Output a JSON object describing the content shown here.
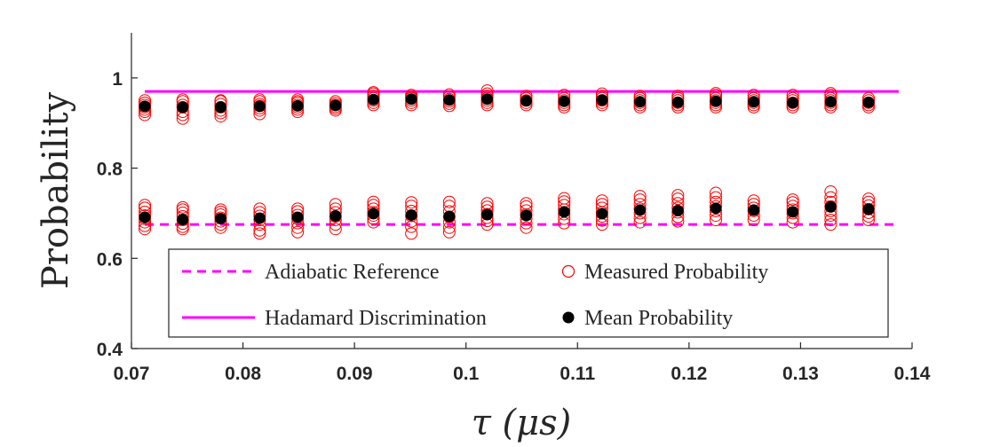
{
  "chart_data": {
    "type": "scatter",
    "xlabel": "τ (μs)",
    "ylabel": "Probability",
    "xlim": [
      0.07,
      0.14
    ],
    "ylim": [
      0.4,
      1.1
    ],
    "xticks": [
      0.07,
      0.08,
      0.09,
      0.1,
      0.11,
      0.12,
      0.13,
      0.14
    ],
    "xtick_labels": [
      "0.07",
      "0.08",
      "0.09",
      "0.1",
      "0.11",
      "0.12",
      "0.13",
      "0.14"
    ],
    "yticks": [
      0.4,
      0.6,
      0.8,
      1.0
    ],
    "ytick_labels": [
      "0.4",
      "0.6",
      "0.8",
      "1"
    ],
    "grid": false,
    "legend_position": "lower-center",
    "colors": {
      "adiabatic": "#ff00ff",
      "hadamard": "#ff00ff",
      "measured": "#ff0000",
      "mean": "#000000",
      "axis": "#262626"
    },
    "legend": [
      {
        "label": "Adiabatic Reference",
        "series": "adiabatic"
      },
      {
        "label": "Measured Probability",
        "series": "measured"
      },
      {
        "label": "Hadamard Discrimination",
        "series": "hadamard"
      },
      {
        "label": "Mean Probability",
        "series": "mean"
      }
    ],
    "reference_lines": {
      "adiabatic": {
        "y": 0.675,
        "x_range": [
          0.0712,
          0.1388
        ],
        "style": "dashed"
      },
      "hadamard": {
        "y": 0.97,
        "x_range": [
          0.0712,
          0.1388
        ],
        "style": "solid"
      }
    },
    "x": [
      0.0712,
      0.0746,
      0.078,
      0.0815,
      0.0849,
      0.0883,
      0.0917,
      0.0951,
      0.0985,
      0.1019,
      0.1054,
      0.1088,
      0.1122,
      0.1156,
      0.119,
      0.1224,
      0.1258,
      0.1293,
      0.1327,
      0.1361
    ],
    "mean_high": [
      0.937,
      0.935,
      0.935,
      0.937,
      0.938,
      0.939,
      0.952,
      0.953,
      0.951,
      0.953,
      0.949,
      0.948,
      0.951,
      0.947,
      0.946,
      0.948,
      0.947,
      0.945,
      0.947,
      0.946
    ],
    "mean_low": [
      0.691,
      0.686,
      0.688,
      0.689,
      0.691,
      0.694,
      0.699,
      0.696,
      0.693,
      0.697,
      0.695,
      0.703,
      0.699,
      0.707,
      0.706,
      0.711,
      0.707,
      0.703,
      0.714,
      0.709
    ],
    "measured_high": [
      [
        0.918,
        0.925,
        0.93,
        0.935,
        0.94,
        0.945,
        0.95
      ],
      [
        0.91,
        0.918,
        0.925,
        0.935,
        0.94,
        0.948,
        0.952
      ],
      [
        0.915,
        0.922,
        0.928,
        0.935,
        0.942,
        0.948,
        0.95
      ],
      [
        0.92,
        0.928,
        0.933,
        0.938,
        0.942,
        0.948,
        0.952
      ],
      [
        0.925,
        0.93,
        0.935,
        0.94,
        0.945,
        0.948,
        0.952
      ],
      [
        0.928,
        0.932,
        0.936,
        0.94,
        0.944,
        0.948
      ],
      [
        0.94,
        0.945,
        0.95,
        0.955,
        0.96,
        0.965,
        0.968
      ],
      [
        0.94,
        0.945,
        0.95,
        0.955,
        0.958,
        0.962
      ],
      [
        0.938,
        0.943,
        0.948,
        0.953,
        0.958,
        0.963
      ],
      [
        0.94,
        0.945,
        0.95,
        0.955,
        0.96,
        0.965,
        0.972
      ],
      [
        0.94,
        0.945,
        0.95,
        0.955,
        0.96
      ],
      [
        0.935,
        0.94,
        0.945,
        0.95,
        0.955,
        0.962
      ],
      [
        0.94,
        0.945,
        0.95,
        0.955,
        0.96,
        0.965
      ],
      [
        0.935,
        0.94,
        0.945,
        0.95,
        0.955,
        0.96
      ],
      [
        0.935,
        0.94,
        0.945,
        0.95,
        0.955,
        0.96
      ],
      [
        0.935,
        0.94,
        0.945,
        0.95,
        0.955,
        0.962,
        0.966
      ],
      [
        0.935,
        0.94,
        0.945,
        0.95,
        0.955,
        0.962
      ],
      [
        0.935,
        0.94,
        0.945,
        0.95,
        0.955,
        0.962
      ],
      [
        0.935,
        0.94,
        0.945,
        0.95,
        0.955,
        0.962,
        0.966
      ],
      [
        0.935,
        0.94,
        0.945,
        0.95,
        0.955
      ]
    ],
    "measured_low": [
      [
        0.665,
        0.672,
        0.68,
        0.688,
        0.695,
        0.703,
        0.712,
        0.718
      ],
      [
        0.665,
        0.67,
        0.677,
        0.685,
        0.693,
        0.701,
        0.708,
        0.713
      ],
      [
        0.668,
        0.675,
        0.682,
        0.69,
        0.697,
        0.703,
        0.708
      ],
      [
        0.655,
        0.662,
        0.675,
        0.685,
        0.694,
        0.702,
        0.71
      ],
      [
        0.658,
        0.668,
        0.678,
        0.688,
        0.696,
        0.704,
        0.71
      ],
      [
        0.665,
        0.675,
        0.685,
        0.693,
        0.702,
        0.71,
        0.72
      ],
      [
        0.68,
        0.688,
        0.695,
        0.702,
        0.71,
        0.718,
        0.725
      ],
      [
        0.655,
        0.67,
        0.682,
        0.694,
        0.705,
        0.716,
        0.724
      ],
      [
        0.658,
        0.668,
        0.68,
        0.692,
        0.704,
        0.716,
        0.725
      ],
      [
        0.675,
        0.683,
        0.69,
        0.698,
        0.706,
        0.714,
        0.722
      ],
      [
        0.668,
        0.678,
        0.688,
        0.697,
        0.706,
        0.715,
        0.722
      ],
      [
        0.678,
        0.688,
        0.698,
        0.708,
        0.718,
        0.726,
        0.733
      ],
      [
        0.675,
        0.684,
        0.693,
        0.702,
        0.712,
        0.72,
        0.728
      ],
      [
        0.68,
        0.69,
        0.7,
        0.71,
        0.72,
        0.73,
        0.738
      ],
      [
        0.682,
        0.692,
        0.702,
        0.712,
        0.722,
        0.732,
        0.74
      ],
      [
        0.685,
        0.695,
        0.705,
        0.715,
        0.725,
        0.735,
        0.745
      ],
      [
        0.685,
        0.695,
        0.705,
        0.712,
        0.72,
        0.728
      ],
      [
        0.68,
        0.69,
        0.7,
        0.708,
        0.716,
        0.724,
        0.73
      ],
      [
        0.675,
        0.685,
        0.695,
        0.705,
        0.715,
        0.725,
        0.735,
        0.748
      ],
      [
        0.685,
        0.693,
        0.701,
        0.709,
        0.717,
        0.725,
        0.732
      ]
    ]
  }
}
